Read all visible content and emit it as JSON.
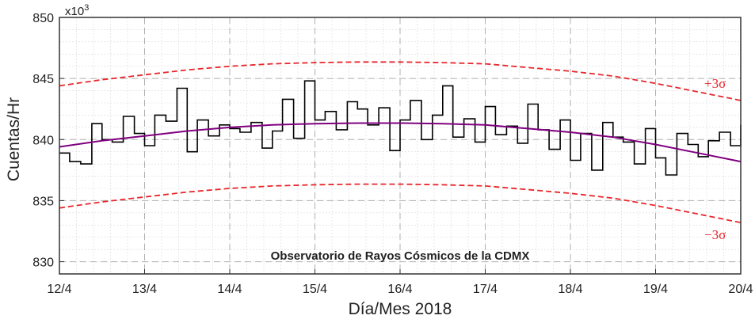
{
  "chart_data": {
    "type": "line",
    "title": "Observatorio de Rayos Cósmicos de la CDMX",
    "xlabel": "Día/Mes 2018",
    "ylabel": "Cuentas/Hr",
    "y_multiplier": "x10",
    "y_multiplier_exp": "3",
    "xlim": [
      12,
      20
    ],
    "ylim": [
      829,
      850
    ],
    "x_ticks": [
      12,
      13,
      14,
      15,
      16,
      17,
      18,
      19,
      20
    ],
    "x_tick_labels": [
      "12/4",
      "13/4",
      "14/4",
      "15/4",
      "16/4",
      "17/4",
      "18/4",
      "19/4",
      "20/4"
    ],
    "y_ticks": [
      830,
      835,
      840,
      845,
      850
    ],
    "y_tick_labels": [
      "830",
      "835",
      "840",
      "845",
      "850"
    ],
    "grid": true,
    "colors": {
      "data": "#000000",
      "fit": "#800080",
      "bands": "#e8262b",
      "grid": "#b0b0b0"
    },
    "series": [
      {
        "style": "step",
        "x": [
          12.0,
          12.12,
          12.25,
          12.38,
          12.5,
          12.62,
          12.75,
          12.88,
          13.0,
          13.12,
          13.25,
          13.38,
          13.5,
          13.62,
          13.75,
          13.88,
          14.0,
          14.12,
          14.25,
          14.38,
          14.5,
          14.62,
          14.75,
          14.88,
          15.0,
          15.12,
          15.25,
          15.38,
          15.5,
          15.62,
          15.75,
          15.88,
          16.0,
          16.12,
          16.25,
          16.38,
          16.5,
          16.62,
          16.75,
          16.88,
          17.0,
          17.12,
          17.25,
          17.38,
          17.5,
          17.62,
          17.75,
          17.88,
          18.0,
          18.12,
          18.25,
          18.38,
          18.5,
          18.62,
          18.75,
          18.88,
          19.0,
          19.12,
          19.25,
          19.38,
          19.5,
          19.62,
          19.75,
          19.88,
          20.0
        ],
        "values": [
          838.9,
          838.2,
          838.0,
          841.3,
          840.0,
          839.8,
          841.9,
          840.5,
          839.5,
          842.0,
          841.5,
          844.2,
          839.0,
          841.6,
          840.3,
          841.2,
          840.9,
          840.6,
          841.4,
          839.3,
          840.7,
          843.3,
          840.1,
          844.8,
          841.6,
          842.3,
          840.8,
          843.1,
          842.5,
          841.2,
          842.6,
          839.1,
          841.6,
          843.2,
          840.0,
          842.0,
          844.4,
          840.2,
          841.7,
          839.8,
          842.7,
          840.4,
          841.1,
          839.7,
          842.9,
          840.8,
          839.2,
          841.6,
          838.3,
          840.5,
          837.5,
          841.4,
          840.2,
          839.8,
          838.0,
          840.9,
          838.5,
          837.1,
          840.5,
          839.6,
          838.6,
          839.9,
          840.6,
          839.5,
          841.2
        ]
      },
      {
        "style": "smooth",
        "x": [
          12.0,
          12.5,
          13.0,
          13.5,
          14.0,
          14.5,
          15.0,
          15.5,
          16.0,
          16.5,
          17.0,
          17.5,
          18.0,
          18.5,
          19.0,
          19.5,
          20.0
        ],
        "values": [
          839.4,
          839.9,
          840.3,
          840.7,
          841.0,
          841.2,
          841.3,
          841.35,
          841.35,
          841.3,
          841.2,
          840.9,
          840.6,
          840.2,
          839.6,
          838.9,
          838.2
        ]
      },
      {
        "style": "dashed",
        "x": [
          12.0,
          12.5,
          13.0,
          13.5,
          14.0,
          14.5,
          15.0,
          15.5,
          16.0,
          16.5,
          17.0,
          17.5,
          18.0,
          18.5,
          19.0,
          19.5,
          20.0
        ],
        "values": [
          844.4,
          844.9,
          845.3,
          845.7,
          846.0,
          846.2,
          846.3,
          846.35,
          846.35,
          846.3,
          846.2,
          845.9,
          845.6,
          845.2,
          844.6,
          843.9,
          843.2
        ]
      },
      {
        "style": "dashed",
        "x": [
          12.0,
          12.5,
          13.0,
          13.5,
          14.0,
          14.5,
          15.0,
          15.5,
          16.0,
          16.5,
          17.0,
          17.5,
          18.0,
          18.5,
          19.0,
          19.5,
          20.0
        ],
        "values": [
          834.4,
          834.9,
          835.3,
          835.7,
          836.0,
          836.2,
          836.3,
          836.35,
          836.35,
          836.3,
          836.2,
          835.9,
          835.6,
          835.2,
          834.6,
          833.9,
          833.2
        ]
      }
    ],
    "annotations": [
      "+3σ",
      "−3σ"
    ]
  }
}
